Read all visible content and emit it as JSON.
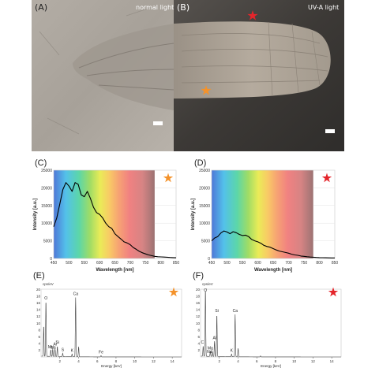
{
  "photos": {
    "a": {
      "letter": "(A)",
      "label": "normal light"
    },
    "b": {
      "letter": "(B)",
      "label": "UV-A light"
    }
  },
  "colors": {
    "orange_star": "#f4922a",
    "red_star": "#e4252b"
  },
  "chart_data": [
    {
      "id": "C",
      "letter": "(C)",
      "type": "line",
      "marker": "orange-star",
      "xlabel": "Wavelength [nm]",
      "ylabel": "Intensity [a.u.]",
      "xlim": [
        450,
        850
      ],
      "ylim": [
        0,
        25000
      ],
      "xticks": [
        "450",
        "500",
        "550",
        "600",
        "650",
        "700",
        "750",
        "800",
        "850"
      ],
      "yticks": [
        "0",
        "5000",
        "10000",
        "15000",
        "20000",
        "25000"
      ],
      "x": [
        450,
        460,
        470,
        480,
        490,
        500,
        510,
        520,
        530,
        540,
        550,
        560,
        570,
        580,
        590,
        600,
        610,
        620,
        630,
        640,
        650,
        660,
        670,
        680,
        690,
        700,
        710,
        720,
        730,
        740,
        750,
        760,
        770,
        780,
        790,
        800,
        810,
        820,
        830,
        840,
        850
      ],
      "y": [
        9000,
        11500,
        15500,
        19500,
        21500,
        20500,
        19000,
        21500,
        21000,
        18000,
        17500,
        19000,
        17000,
        14500,
        13000,
        12500,
        11500,
        10000,
        9000,
        8500,
        7000,
        6200,
        5500,
        4700,
        4400,
        3900,
        3100,
        2600,
        2000,
        1600,
        1300,
        1000,
        800,
        600,
        500,
        450,
        400,
        350,
        300,
        250,
        200
      ]
    },
    {
      "id": "D",
      "letter": "(D)",
      "type": "line",
      "marker": "red-star",
      "xlabel": "Wavelength [nm]",
      "ylabel": "Intensity [a.u.]",
      "xlim": [
        450,
        850
      ],
      "ylim": [
        0,
        25000
      ],
      "xticks": [
        "450",
        "500",
        "550",
        "600",
        "650",
        "700",
        "750",
        "800",
        "850"
      ],
      "yticks": [
        "0",
        "5000",
        "10000",
        "15000",
        "20000",
        "25000"
      ],
      "x": [
        450,
        460,
        470,
        480,
        490,
        500,
        510,
        520,
        530,
        540,
        550,
        560,
        570,
        580,
        590,
        600,
        610,
        620,
        630,
        640,
        650,
        660,
        670,
        680,
        690,
        700,
        710,
        720,
        730,
        740,
        750,
        760,
        770,
        780,
        790,
        800,
        810,
        820,
        830,
        840,
        850
      ],
      "y": [
        5000,
        5800,
        6200,
        7200,
        7800,
        7500,
        7000,
        7600,
        7300,
        6800,
        6500,
        6600,
        6200,
        5400,
        5000,
        4700,
        4300,
        3700,
        3400,
        3200,
        2800,
        2400,
        2100,
        1900,
        1700,
        1500,
        1200,
        1000,
        900,
        700,
        600,
        500,
        400,
        350,
        300,
        250,
        220,
        200,
        180,
        160,
        150
      ]
    },
    {
      "id": "E",
      "letter": "(E)",
      "type": "line",
      "marker": "orange-star",
      "unit_label": "cps/eV",
      "xlabel": "Energy [keV]",
      "xlim": [
        0,
        15
      ],
      "ylim": [
        0,
        20
      ],
      "xticks": [
        "2",
        "4",
        "6",
        "8",
        "10",
        "12",
        "14"
      ],
      "yticks": [
        "2",
        "4",
        "6",
        "8",
        "10",
        "12",
        "14",
        "16",
        "18",
        "20"
      ],
      "peaks": [
        {
          "x": 0.28,
          "y": 9
        },
        {
          "x": 0.52,
          "y": 16.5
        },
        {
          "x": 1.04,
          "y": 2.0
        },
        {
          "x": 1.25,
          "y": 2.2
        },
        {
          "x": 1.49,
          "y": 2.3
        },
        {
          "x": 1.74,
          "y": 3.0
        },
        {
          "x": 2.31,
          "y": 1.0
        },
        {
          "x": 3.31,
          "y": 0.8
        },
        {
          "x": 3.69,
          "y": 17.5
        },
        {
          "x": 4.01,
          "y": 3.0
        },
        {
          "x": 6.4,
          "y": 0.4
        }
      ],
      "peak_labels": [
        {
          "text": "O",
          "x": 0.52,
          "y": 17
        },
        {
          "text": "Mg",
          "x": 1.04,
          "y": 2.6
        },
        {
          "text": "Na",
          "x": 1.3,
          "y": 2.5
        },
        {
          "text": "Al",
          "x": 1.49,
          "y": 3.4
        },
        {
          "text": "Si",
          "x": 1.74,
          "y": 4.0
        },
        {
          "text": "S",
          "x": 2.31,
          "y": 1.8
        },
        {
          "text": "K",
          "x": 3.31,
          "y": 1.5
        },
        {
          "text": "Ca",
          "x": 3.69,
          "y": 18.3
        },
        {
          "text": "Fe",
          "x": 6.4,
          "y": 1.0
        }
      ]
    },
    {
      "id": "F",
      "letter": "(F)",
      "type": "line",
      "marker": "red-star",
      "unit_label": "cps/eV",
      "xlabel": "Energy [keV]",
      "xlim": [
        0,
        15
      ],
      "ylim": [
        0,
        20
      ],
      "xticks": [
        "2",
        "4",
        "6",
        "8",
        "10",
        "12",
        "14"
      ],
      "yticks": [
        "2",
        "4",
        "6",
        "8",
        "10",
        "12",
        "14",
        "16",
        "18",
        "20"
      ],
      "peaks": [
        {
          "x": 0.28,
          "y": 3
        },
        {
          "x": 0.52,
          "y": 20
        },
        {
          "x": 1.04,
          "y": 1.5
        },
        {
          "x": 1.25,
          "y": 1.6
        },
        {
          "x": 1.49,
          "y": 4.5
        },
        {
          "x": 1.74,
          "y": 12.5
        },
        {
          "x": 3.31,
          "y": 0.8
        },
        {
          "x": 3.69,
          "y": 12.5
        },
        {
          "x": 4.01,
          "y": 2.5
        },
        {
          "x": 6.4,
          "y": 0.3
        }
      ],
      "peak_labels": [
        {
          "text": "O",
          "x": 0.52,
          "y": 19.3
        },
        {
          "text": "C",
          "x": 0.2,
          "y": 4.0
        },
        {
          "text": "Mg",
          "x": 1.04,
          "y": 2.2
        },
        {
          "text": "Na",
          "x": 0.95,
          "y": 1.2
        },
        {
          "text": "Al",
          "x": 1.49,
          "y": 5.2
        },
        {
          "text": "Si",
          "x": 1.74,
          "y": 13.2
        },
        {
          "text": "K",
          "x": 3.31,
          "y": 1.5
        },
        {
          "text": "Ca",
          "x": 3.69,
          "y": 13.2
        }
      ]
    }
  ]
}
